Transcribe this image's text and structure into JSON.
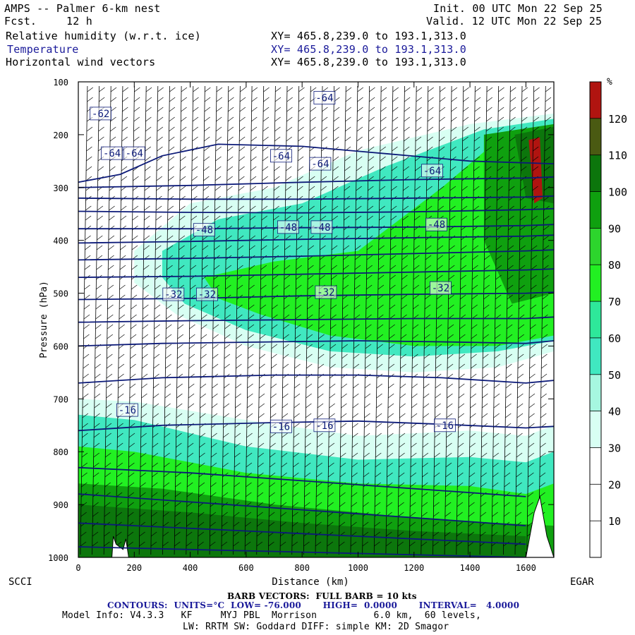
{
  "header": {
    "model_title": "AMPS -- Palmer 6-km nest",
    "fcst_label": "Fcst.",
    "fcst_value": "12 h",
    "init": "Init. 00 UTC Mon 22 Sep 25",
    "valid": "Valid. 12 UTC Mon 22 Sep 25",
    "fields": [
      {
        "name": "Relative humidity (w.r.t. ice)",
        "xy": "XY= 465.8,239.0 to 193.1,313.0",
        "color": "#000000"
      },
      {
        "name": "Temperature",
        "xy": "XY= 465.8,239.0 to 193.1,313.0",
        "color": "#1a1a9a"
      },
      {
        "name": "Horizontal wind vectors",
        "xy": "XY= 465.8,239.0 to 193.1,313.0",
        "color": "#000000"
      }
    ]
  },
  "axes": {
    "ylabel": "Pressure (hPa)",
    "xlabel": "Distance (km)",
    "left_station": "SCCI",
    "right_station": "EGAR"
  },
  "colorbar": {
    "unit": "%",
    "ticks": [
      "10",
      "20",
      "30",
      "40",
      "50",
      "60",
      "70",
      "80",
      "90",
      "100",
      "110",
      "120"
    ],
    "colors": [
      "#ffffff",
      "#ffffff",
      "#ffffff",
      "#d8fff3",
      "#a6f7e0",
      "#40e8c0",
      "#2ee89a",
      "#22f022",
      "#2dd52d",
      "#0fa00f",
      "#0c760c",
      "#4a5a12",
      "#b01410",
      "#ff1010"
    ]
  },
  "footer": {
    "barb_line": "BARB VECTORS:  FULL BARB = 10 kts",
    "contours_line": "CONTOURS:  UNITS=°C  LOW= -76.000       HIGH=  0.0000       INTERVAL=   4.0000",
    "model_info_line": "Model Info: V4.3.3   KF     MYJ PBL  Morrison          6.0 km,  60 levels,",
    "physics_line": "LW: RRTM SW: Goddard DIFF: simple KM: 2D Smagor"
  },
  "chart_data": {
    "type": "cross-section",
    "x_unit": "km",
    "y_unit": "hPa",
    "xlim": [
      0,
      1700
    ],
    "ylim": [
      1000,
      100
    ],
    "xticks": [
      0,
      200,
      400,
      600,
      800,
      1000,
      1200,
      1400,
      1600
    ],
    "yticks": [
      100,
      200,
      300,
      400,
      500,
      600,
      700,
      800,
      900,
      1000
    ],
    "fill_field": "Relative humidity (w.r.t. ice)",
    "fill_unit": "%",
    "fill_regions": [
      {
        "rh": 35,
        "points": [
          [
            0,
            700
          ],
          [
            200,
            705
          ],
          [
            600,
            740
          ],
          [
            1000,
            770
          ],
          [
            1400,
            760
          ],
          [
            1600,
            770
          ],
          [
            1700,
            750
          ],
          [
            1700,
            1000
          ],
          [
            0,
            1000
          ]
        ]
      },
      {
        "rh": 55,
        "points": [
          [
            0,
            730
          ],
          [
            200,
            740
          ],
          [
            600,
            790
          ],
          [
            1000,
            815
          ],
          [
            1400,
            810
          ],
          [
            1600,
            820
          ],
          [
            1700,
            800
          ],
          [
            1700,
            1000
          ],
          [
            0,
            1000
          ]
        ]
      },
      {
        "rh": 75,
        "points": [
          [
            0,
            790
          ],
          [
            200,
            800
          ],
          [
            600,
            840
          ],
          [
            1000,
            860
          ],
          [
            1400,
            865
          ],
          [
            1600,
            880
          ],
          [
            1700,
            860
          ],
          [
            1700,
            1000
          ],
          [
            0,
            1000
          ]
        ]
      },
      {
        "rh": 95,
        "points": [
          [
            0,
            860
          ],
          [
            300,
            870
          ],
          [
            700,
            900
          ],
          [
            1100,
            920
          ],
          [
            1500,
            935
          ],
          [
            1700,
            940
          ],
          [
            1700,
            1000
          ],
          [
            0,
            1000
          ]
        ]
      },
      {
        "rh": 105,
        "points": [
          [
            0,
            900
          ],
          [
            400,
            915
          ],
          [
            800,
            935
          ],
          [
            1200,
            950
          ],
          [
            1600,
            960
          ],
          [
            1600,
            1000
          ],
          [
            0,
            1000
          ]
        ]
      },
      {
        "rh": 35,
        "points": [
          [
            200,
            420
          ],
          [
            400,
            330
          ],
          [
            700,
            300
          ],
          [
            1000,
            230
          ],
          [
            1400,
            180
          ],
          [
            1700,
            160
          ],
          [
            1700,
            610
          ],
          [
            1500,
            640
          ],
          [
            1200,
            650
          ],
          [
            900,
            640
          ],
          [
            600,
            600
          ],
          [
            350,
            540
          ],
          [
            200,
            480
          ]
        ]
      },
      {
        "rh": 55,
        "points": [
          [
            300,
            420
          ],
          [
            500,
            360
          ],
          [
            800,
            330
          ],
          [
            1100,
            260
          ],
          [
            1450,
            190
          ],
          [
            1700,
            170
          ],
          [
            1700,
            590
          ],
          [
            1500,
            610
          ],
          [
            1200,
            620
          ],
          [
            900,
            610
          ],
          [
            600,
            570
          ],
          [
            380,
            520
          ],
          [
            300,
            470
          ]
        ]
      },
      {
        "rh": 75,
        "points": [
          [
            450,
            470
          ],
          [
            700,
            440
          ],
          [
            1000,
            420
          ],
          [
            1300,
            300
          ],
          [
            1500,
            210
          ],
          [
            1700,
            190
          ],
          [
            1700,
            580
          ],
          [
            1500,
            600
          ],
          [
            1200,
            600
          ],
          [
            900,
            580
          ],
          [
            650,
            540
          ],
          [
            500,
            510
          ]
        ]
      },
      {
        "rh": 95,
        "points": [
          [
            1450,
            200
          ],
          [
            1700,
            180
          ],
          [
            1700,
            500
          ],
          [
            1550,
            520
          ],
          [
            1450,
            400
          ]
        ]
      },
      {
        "rh": 105,
        "points": [
          [
            1560,
            200
          ],
          [
            1700,
            185
          ],
          [
            1700,
            330
          ],
          [
            1600,
            320
          ]
        ]
      },
      {
        "rh": 125,
        "points": [
          [
            1610,
            210
          ],
          [
            1650,
            205
          ],
          [
            1660,
            320
          ],
          [
            1630,
            330
          ]
        ]
      }
    ],
    "contour_field": "Temperature",
    "contour_unit": "°C",
    "contour_low": -76.0,
    "contour_high": 0.0,
    "contour_interval": 4.0,
    "isotherms": [
      [
        [
          0,
          980
        ],
        [
          400,
          985
        ],
        [
          800,
          990
        ],
        [
          1200,
          995
        ],
        [
          1600,
          1000
        ]
      ],
      [
        [
          0,
          935
        ],
        [
          400,
          945
        ],
        [
          800,
          955
        ],
        [
          1200,
          965
        ],
        [
          1600,
          975
        ]
      ],
      [
        [
          0,
          880
        ],
        [
          400,
          895
        ],
        [
          800,
          910
        ],
        [
          1200,
          925
        ],
        [
          1600,
          940
        ]
      ],
      [
        [
          0,
          830
        ],
        [
          400,
          840
        ],
        [
          800,
          855
        ],
        [
          1200,
          870
        ],
        [
          1600,
          885
        ]
      ],
      [
        [
          0,
          760
        ],
        [
          300,
          750
        ],
        [
          700,
          745
        ],
        [
          1000,
          742
        ],
        [
          1300,
          748
        ],
        [
          1600,
          755
        ],
        [
          1700,
          752
        ]
      ],
      [
        [
          0,
          670
        ],
        [
          300,
          660
        ],
        [
          700,
          655
        ],
        [
          1000,
          655
        ],
        [
          1300,
          660
        ],
        [
          1600,
          670
        ],
        [
          1700,
          665
        ]
      ],
      [
        [
          0,
          600
        ],
        [
          300,
          595
        ],
        [
          700,
          592
        ],
        [
          1000,
          590
        ],
        [
          1300,
          592
        ],
        [
          1600,
          595
        ],
        [
          1700,
          590
        ]
      ],
      [
        [
          0,
          555
        ],
        [
          400,
          552
        ],
        [
          800,
          550
        ],
        [
          1200,
          548
        ],
        [
          1600,
          548
        ],
        [
          1700,
          545
        ]
      ],
      [
        [
          0,
          512
        ],
        [
          400,
          510
        ],
        [
          800,
          505
        ],
        [
          1200,
          502
        ],
        [
          1600,
          500
        ],
        [
          1700,
          498
        ]
      ],
      [
        [
          0,
          470
        ],
        [
          400,
          468
        ],
        [
          800,
          464
        ],
        [
          1200,
          460
        ],
        [
          1600,
          456
        ],
        [
          1700,
          454
        ]
      ],
      [
        [
          0,
          437
        ],
        [
          400,
          434
        ],
        [
          800,
          430
        ],
        [
          1200,
          425
        ],
        [
          1600,
          420
        ],
        [
          1700,
          418
        ]
      ],
      [
        [
          0,
          405
        ],
        [
          400,
          402
        ],
        [
          800,
          398
        ],
        [
          1200,
          395
        ],
        [
          1600,
          392
        ],
        [
          1700,
          390
        ]
      ],
      [
        [
          0,
          378
        ],
        [
          400,
          378
        ],
        [
          800,
          376
        ],
        [
          1200,
          375
        ],
        [
          1600,
          372
        ],
        [
          1700,
          370
        ]
      ],
      [
        [
          0,
          345
        ],
        [
          400,
          347
        ],
        [
          800,
          348
        ],
        [
          1200,
          346
        ],
        [
          1600,
          342
        ],
        [
          1700,
          340
        ]
      ],
      [
        [
          0,
          320
        ],
        [
          400,
          322
        ],
        [
          800,
          322
        ],
        [
          1200,
          320
        ],
        [
          1600,
          318
        ],
        [
          1700,
          316
        ]
      ],
      [
        [
          0,
          300
        ],
        [
          400,
          296
        ],
        [
          800,
          290
        ],
        [
          1200,
          285
        ],
        [
          1600,
          282
        ],
        [
          1700,
          280
        ]
      ],
      [
        [
          0,
          290
        ],
        [
          150,
          275
        ],
        [
          300,
          240
        ],
        [
          500,
          218
        ],
        [
          800,
          222
        ],
        [
          1100,
          236
        ],
        [
          1400,
          250
        ],
        [
          1700,
          255
        ]
      ]
    ],
    "isotherm_labels": [
      {
        "x": 80,
        "p": 160,
        "text": "-62"
      },
      {
        "x": 120,
        "p": 235,
        "text": "-64"
      },
      {
        "x": 200,
        "p": 235,
        "text": "-64"
      },
      {
        "x": 880,
        "p": 130,
        "text": "-64"
      },
      {
        "x": 725,
        "p": 240,
        "text": "-64"
      },
      {
        "x": 865,
        "p": 255,
        "text": "-64"
      },
      {
        "x": 1265,
        "p": 268,
        "text": "-64"
      },
      {
        "x": 450,
        "p": 380,
        "text": "-48"
      },
      {
        "x": 750,
        "p": 375,
        "text": "-48"
      },
      {
        "x": 870,
        "p": 375,
        "text": "-48"
      },
      {
        "x": 1280,
        "p": 370,
        "text": "-48"
      },
      {
        "x": 340,
        "p": 502,
        "text": "-32"
      },
      {
        "x": 460,
        "p": 502,
        "text": "-32"
      },
      {
        "x": 885,
        "p": 498,
        "text": "-32"
      },
      {
        "x": 1295,
        "p": 490,
        "text": "-32"
      },
      {
        "x": 175,
        "p": 721,
        "text": "-16"
      },
      {
        "x": 725,
        "p": 752,
        "text": "-16"
      },
      {
        "x": 880,
        "p": 750,
        "text": "-16"
      },
      {
        "x": 1310,
        "p": 750,
        "text": "-16"
      }
    ],
    "vector_field": "Horizontal wind vectors",
    "barb_spacing_km": 42,
    "terrain": [
      {
        "x": 120,
        "p": 1000
      },
      {
        "x": 125,
        "p": 960
      },
      {
        "x": 135,
        "p": 975
      },
      {
        "x": 160,
        "p": 985
      },
      {
        "x": 170,
        "p": 965
      },
      {
        "x": 180,
        "p": 1000
      },
      {
        "x": 1600,
        "p": 1000
      },
      {
        "x": 1630,
        "p": 915
      },
      {
        "x": 1650,
        "p": 885
      },
      {
        "x": 1675,
        "p": 960
      },
      {
        "x": 1700,
        "p": 1000
      }
    ]
  }
}
